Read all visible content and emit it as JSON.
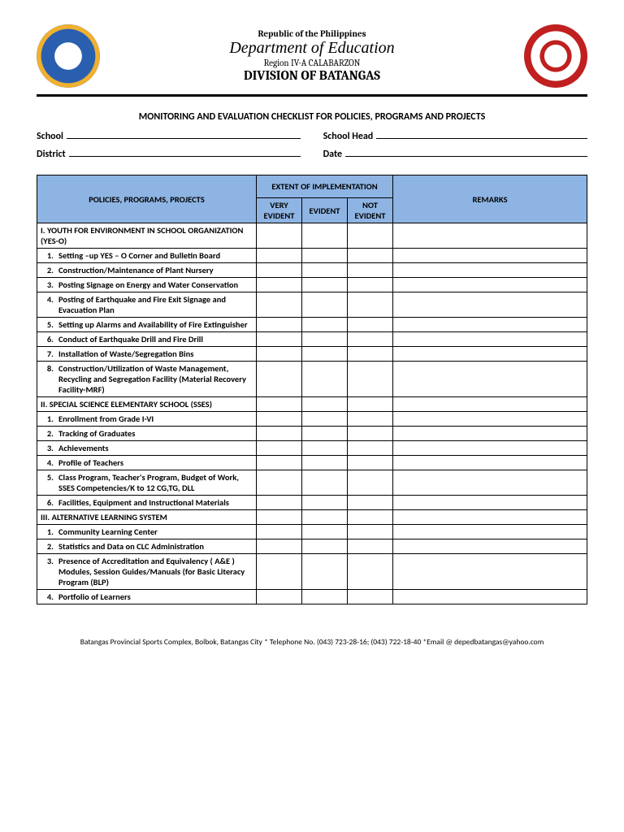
{
  "header": {
    "republic": "Republic of the Philippines",
    "department": "Department of Education",
    "region": "Region IV-A CALABARZON",
    "division": "DIVISION OF BATANGAS"
  },
  "title": "MONITORING AND EVALUATION CHECKLIST FOR POLICIES, PROGRAMS AND PROJECTS",
  "fields": {
    "school": "School",
    "schoolHead": "School Head",
    "district": "District",
    "date": "Date"
  },
  "tableHeaders": {
    "policies": "POLICIES, PROGRAMS, PROJECTS",
    "extent": "EXTENT OF IMPLEMENTATION",
    "very": "VERY EVIDENT",
    "evident": "EVIDENT",
    "not": "NOT EVIDENT",
    "remarks": "REMARKS"
  },
  "sections": [
    {
      "head": "I. YOUTH FOR ENVIRONMENT IN SCHOOL ORGANIZATION (YES-O)",
      "items": [
        {
          "n": "1.",
          "t": "Setting –up YES – O Corner and Bulletin Board"
        },
        {
          "n": "2.",
          "t": "Construction/Maintenance of Plant Nursery"
        },
        {
          "n": "3.",
          "t": "Posting Signage on Energy and Water Conservation"
        },
        {
          "n": "4.",
          "t": "Posting of Earthquake and Fire Exit Signage and Evacuation Plan"
        },
        {
          "n": "5.",
          "t": "Setting up Alarms and Availability of Fire Extinguisher"
        },
        {
          "n": "6.",
          "t": "Conduct of Earthquake Drill and Fire Drill"
        },
        {
          "n": "7.",
          "t": "Installation of Waste/Segregation Bins"
        },
        {
          "n": "8.",
          "t": "Construction/Utilization of Waste Management, Recycling and Segregation Facility (Material Recovery Facility-MRF)"
        }
      ]
    },
    {
      "head": "II. SPECIAL SCIENCE ELEMENTARY SCHOOL (SSES)",
      "items": [
        {
          "n": "1.",
          "t": "Enrollment from Grade I-VI"
        },
        {
          "n": "2.",
          "t": "Tracking of Graduates"
        },
        {
          "n": "3.",
          "t": "Achievements"
        },
        {
          "n": "4.",
          "t": "Profile of Teachers"
        },
        {
          "n": "5.",
          "t": "Class Program, Teacher's Program, Budget of Work, SSES Competencies/K to 12 CG,TG, DLL"
        },
        {
          "n": "6.",
          "t": "Facilities, Equipment and Instructional Materials"
        }
      ]
    },
    {
      "head": "III. ALTERNATIVE LEARNING SYSTEM",
      "items": [
        {
          "n": "1.",
          "t": "Community Learning Center"
        },
        {
          "n": "2.",
          "t": "Statistics and Data on CLC Administration"
        },
        {
          "n": "3.",
          "t": "Presence of Accreditation and Equivalency ( A&E ) Modules, Session Guides/Manuals (for Basic Literacy Program (BLP)"
        },
        {
          "n": "4.",
          "t": "Portfolio of Learners"
        }
      ]
    }
  ],
  "footer": "Batangas Provincial Sports Complex, Bolbok, Batangas City * Telephone No. (043) 723-28-16; (043) 722-18-40 *Email @ depedbatangas@yahoo.com",
  "colors": {
    "headerBg": "#8eb4e3",
    "border": "#000000"
  }
}
